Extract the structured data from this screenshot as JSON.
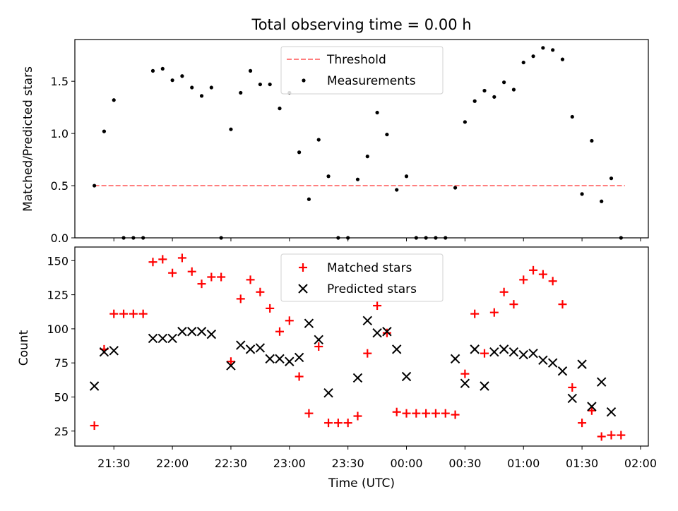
{
  "figure": {
    "title": "Total observing time = 0.00 h"
  },
  "chart_data": [
    {
      "type": "scatter",
      "ylabel": "Matched/Predicted stars",
      "xlim": [
        "21:10",
        "02:04"
      ],
      "ylim": [
        0,
        1.9
      ],
      "yticks": [
        "0.0",
        "0.5",
        "1.0",
        "1.5"
      ],
      "legend_position": "upper-center",
      "threshold": {
        "name": "Threshold",
        "value": 0.5,
        "x_range": [
          "21:20",
          "01:52"
        ],
        "color": "#ff7f7f"
      },
      "series": [
        {
          "name": "Measurements",
          "color": "#000000",
          "marker": "dot",
          "points": [
            [
              "21:20",
              0.5
            ],
            [
              "21:25",
              1.02
            ],
            [
              "21:30",
              1.32
            ],
            [
              "21:35",
              0.0
            ],
            [
              "21:40",
              0.0
            ],
            [
              "21:45",
              0.0
            ],
            [
              "21:50",
              1.6
            ],
            [
              "21:55",
              1.62
            ],
            [
              "22:00",
              1.51
            ],
            [
              "22:05",
              1.55
            ],
            [
              "22:10",
              1.44
            ],
            [
              "22:15",
              1.36
            ],
            [
              "22:20",
              1.44
            ],
            [
              "22:25",
              0.0
            ],
            [
              "22:30",
              1.04
            ],
            [
              "22:35",
              1.39
            ],
            [
              "22:40",
              1.6
            ],
            [
              "22:45",
              1.47
            ],
            [
              "22:50",
              1.47
            ],
            [
              "22:55",
              1.24
            ],
            [
              "23:00",
              1.39
            ],
            [
              "23:05",
              0.82
            ],
            [
              "23:10",
              0.37
            ],
            [
              "23:15",
              0.94
            ],
            [
              "23:20",
              0.59
            ],
            [
              "23:25",
              0.0
            ],
            [
              "23:30",
              0.0
            ],
            [
              "23:35",
              0.56
            ],
            [
              "23:40",
              0.78
            ],
            [
              "23:45",
              1.2
            ],
            [
              "23:50",
              0.99
            ],
            [
              "23:55",
              0.46
            ],
            [
              "00:00",
              0.59
            ],
            [
              "00:05",
              0.0
            ],
            [
              "00:10",
              0.0
            ],
            [
              "00:15",
              0.0
            ],
            [
              "00:20",
              0.0
            ],
            [
              "00:25",
              0.48
            ],
            [
              "00:30",
              1.11
            ],
            [
              "00:35",
              1.31
            ],
            [
              "00:40",
              1.41
            ],
            [
              "00:45",
              1.35
            ],
            [
              "00:50",
              1.49
            ],
            [
              "00:55",
              1.42
            ],
            [
              "01:00",
              1.68
            ],
            [
              "01:05",
              1.74
            ],
            [
              "01:10",
              1.82
            ],
            [
              "01:15",
              1.8
            ],
            [
              "01:20",
              1.71
            ],
            [
              "01:25",
              1.16
            ],
            [
              "01:30",
              0.42
            ],
            [
              "01:35",
              0.93
            ],
            [
              "01:40",
              0.35
            ],
            [
              "01:45",
              0.57
            ],
            [
              "01:50",
              0.0
            ]
          ]
        }
      ]
    },
    {
      "type": "scatter",
      "ylabel": "Count",
      "xlabel": "Time (UTC)",
      "xlim": [
        "21:10",
        "02:04"
      ],
      "ylim": [
        14,
        160
      ],
      "xticks": [
        "21:30",
        "22:00",
        "22:30",
        "23:00",
        "23:30",
        "00:00",
        "00:30",
        "01:00",
        "01:30",
        "02:00"
      ],
      "yticks": [
        "25",
        "50",
        "75",
        "100",
        "125",
        "150"
      ],
      "legend_position": "upper-center",
      "series": [
        {
          "name": "Matched stars",
          "color": "#ff0000",
          "marker": "plus",
          "points": [
            [
              "21:20",
              29
            ],
            [
              "21:25",
              85
            ],
            [
              "21:30",
              111
            ],
            [
              "21:35",
              111
            ],
            [
              "21:40",
              111
            ],
            [
              "21:45",
              111
            ],
            [
              "21:50",
              149
            ],
            [
              "21:55",
              151
            ],
            [
              "22:00",
              141
            ],
            [
              "22:05",
              152
            ],
            [
              "22:10",
              142
            ],
            [
              "22:15",
              133
            ],
            [
              "22:20",
              138
            ],
            [
              "22:25",
              138
            ],
            [
              "22:30",
              76
            ],
            [
              "22:35",
              122
            ],
            [
              "22:40",
              136
            ],
            [
              "22:45",
              127
            ],
            [
              "22:50",
              115
            ],
            [
              "22:55",
              98
            ],
            [
              "23:00",
              106
            ],
            [
              "23:05",
              65
            ],
            [
              "23:10",
              38
            ],
            [
              "23:15",
              87
            ],
            [
              "23:20",
              31
            ],
            [
              "23:25",
              31
            ],
            [
              "23:30",
              31
            ],
            [
              "23:35",
              36
            ],
            [
              "23:40",
              82
            ],
            [
              "23:45",
              117
            ],
            [
              "23:50",
              97
            ],
            [
              "23:55",
              39
            ],
            [
              "00:00",
              38
            ],
            [
              "00:05",
              38
            ],
            [
              "00:10",
              38
            ],
            [
              "00:15",
              38
            ],
            [
              "00:20",
              38
            ],
            [
              "00:25",
              37
            ],
            [
              "00:30",
              67
            ],
            [
              "00:35",
              111
            ],
            [
              "00:40",
              82
            ],
            [
              "00:45",
              112
            ],
            [
              "00:50",
              127
            ],
            [
              "00:55",
              118
            ],
            [
              "01:00",
              136
            ],
            [
              "01:05",
              143
            ],
            [
              "01:10",
              140
            ],
            [
              "01:15",
              135
            ],
            [
              "01:20",
              118
            ],
            [
              "01:25",
              57
            ],
            [
              "01:30",
              31
            ],
            [
              "01:35",
              40
            ],
            [
              "01:40",
              21
            ],
            [
              "01:45",
              22
            ],
            [
              "01:50",
              22
            ]
          ]
        },
        {
          "name": "Predicted stars",
          "color": "#000000",
          "marker": "x",
          "points": [
            [
              "21:20",
              58
            ],
            [
              "21:25",
              83
            ],
            [
              "21:30",
              84
            ],
            [
              "21:50",
              93
            ],
            [
              "21:55",
              93
            ],
            [
              "22:00",
              93
            ],
            [
              "22:05",
              98
            ],
            [
              "22:10",
              98
            ],
            [
              "22:15",
              98
            ],
            [
              "22:20",
              96
            ],
            [
              "22:30",
              73
            ],
            [
              "22:35",
              88
            ],
            [
              "22:40",
              85
            ],
            [
              "22:45",
              86
            ],
            [
              "22:50",
              78
            ],
            [
              "22:55",
              78
            ],
            [
              "23:00",
              76
            ],
            [
              "23:05",
              79
            ],
            [
              "23:10",
              104
            ],
            [
              "23:15",
              92
            ],
            [
              "23:20",
              53
            ],
            [
              "23:35",
              64
            ],
            [
              "23:40",
              106
            ],
            [
              "23:45",
              97
            ],
            [
              "23:50",
              98
            ],
            [
              "23:55",
              85
            ],
            [
              "00:00",
              65
            ],
            [
              "00:25",
              78
            ],
            [
              "00:30",
              60
            ],
            [
              "00:35",
              85
            ],
            [
              "00:40",
              58
            ],
            [
              "00:45",
              83
            ],
            [
              "00:50",
              85
            ],
            [
              "00:55",
              83
            ],
            [
              "01:00",
              81
            ],
            [
              "01:05",
              82
            ],
            [
              "01:10",
              77
            ],
            [
              "01:15",
              75
            ],
            [
              "01:20",
              69
            ],
            [
              "01:25",
              49
            ],
            [
              "01:30",
              74
            ],
            [
              "01:35",
              43
            ],
            [
              "01:40",
              61
            ],
            [
              "01:45",
              39
            ]
          ]
        }
      ]
    }
  ]
}
